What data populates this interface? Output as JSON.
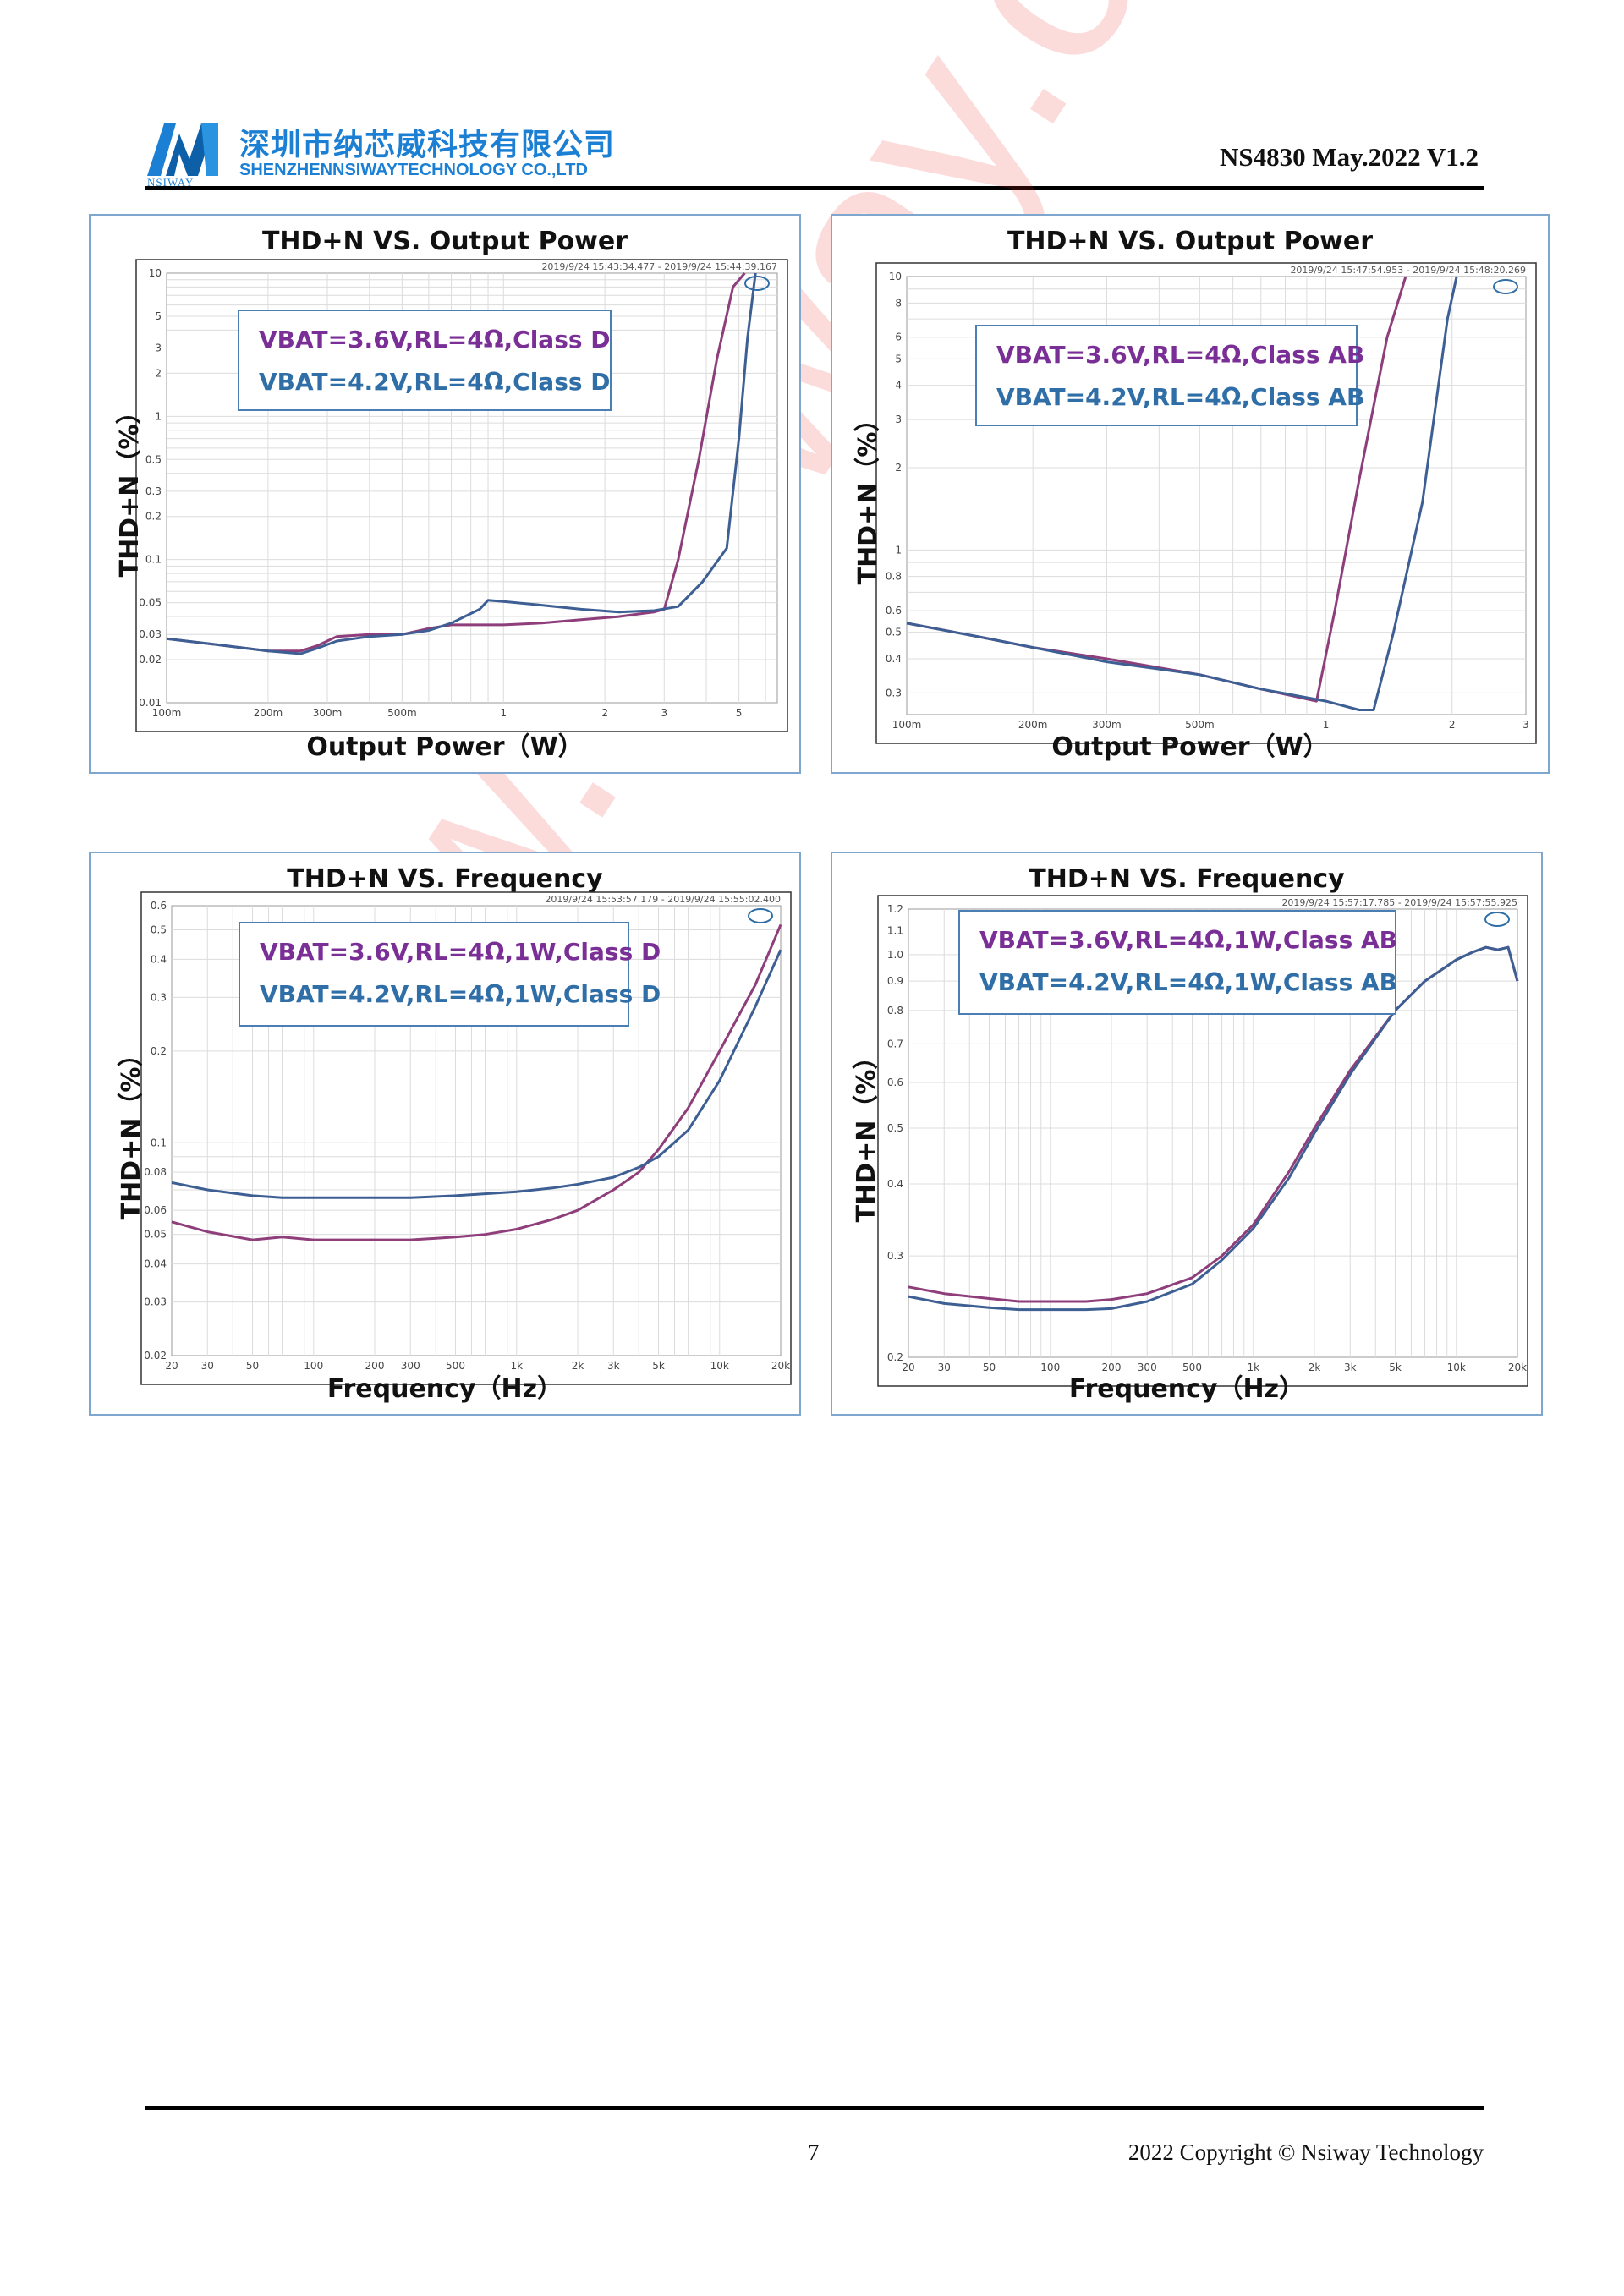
{
  "header": {
    "company_cn": "深圳市纳芯威科技有限公司",
    "company_en": "SHENZHENNSIWAYTECHNOLOGY CO.,LTD",
    "logo_text": "NSIWAY",
    "doc_id": "NS4830 May.2022 V1.2"
  },
  "watermark": "www.nsiway.com",
  "footer": {
    "page": "7",
    "copyright": "2022 Copyright © Nsiway Technology"
  },
  "colors": {
    "series_36": "#8e3e7a",
    "series_42": "#3d5f93",
    "legend_36": "#7a2f96",
    "legend_42": "#2f6ea6",
    "panel_border": "#7ea6cf"
  },
  "chart_data": [
    {
      "type": "line",
      "title": "THD+N VS. Output Power",
      "xlabel": "Output Power（W）",
      "ylabel": "THD+N（%）",
      "xscale": "log",
      "yscale": "log",
      "xlim": [
        0.1,
        6.5
      ],
      "ylim": [
        0.01,
        10
      ],
      "xticks": [
        0.1,
        0.2,
        0.3,
        0.5,
        1,
        2,
        3,
        5
      ],
      "xtick_labels": [
        "100m",
        "200m",
        "300m",
        "500m",
        "1",
        "2",
        "3",
        "5"
      ],
      "yticks": [
        0.01,
        0.02,
        0.03,
        0.05,
        0.1,
        0.2,
        0.3,
        0.5,
        1,
        2,
        3,
        5,
        10
      ],
      "ytick_labels": [
        "0.01",
        "0.02",
        "0.03",
        "0.05",
        "0.1",
        "0.2",
        "0.3",
        "0.5",
        "1",
        "2",
        "3",
        "5",
        "10"
      ],
      "timestamp": "2019/9/24 15:43:34.477 - 2019/9/24 15:44:39.167",
      "legend": [
        "VBAT=3.6V,RL=4Ω,Class D",
        "VBAT=4.2V,RL=4Ω,Class D"
      ],
      "series": [
        {
          "name": "VBAT=3.6V,RL=4Ω,Class D",
          "x": [
            0.1,
            0.15,
            0.2,
            0.25,
            0.28,
            0.32,
            0.4,
            0.5,
            0.6,
            0.7,
            0.85,
            1.0,
            1.3,
            1.7,
            2.2,
            2.8,
            3.0,
            3.3,
            3.8,
            4.3,
            4.8,
            5.2
          ],
          "y": [
            0.028,
            0.025,
            0.023,
            0.023,
            0.025,
            0.029,
            0.03,
            0.03,
            0.033,
            0.035,
            0.035,
            0.035,
            0.036,
            0.038,
            0.04,
            0.043,
            0.045,
            0.1,
            0.5,
            2.5,
            8.0,
            12.0
          ]
        },
        {
          "name": "VBAT=4.2V,RL=4Ω,Class D",
          "x": [
            0.1,
            0.15,
            0.2,
            0.25,
            0.28,
            0.32,
            0.4,
            0.5,
            0.6,
            0.7,
            0.85,
            0.9,
            1.0,
            1.3,
            1.7,
            2.2,
            2.8,
            3.3,
            3.9,
            4.6,
            5.0,
            5.3,
            5.6
          ],
          "y": [
            0.028,
            0.025,
            0.023,
            0.022,
            0.024,
            0.027,
            0.029,
            0.03,
            0.032,
            0.036,
            0.045,
            0.052,
            0.051,
            0.048,
            0.045,
            0.043,
            0.044,
            0.047,
            0.07,
            0.12,
            0.7,
            3.5,
            12.0
          ]
        }
      ]
    },
    {
      "type": "line",
      "title": "THD+N VS. Output Power",
      "xlabel": "Output Power（W）",
      "ylabel": "THD+N（%）",
      "xscale": "log",
      "yscale": "log",
      "xlim": [
        0.1,
        3
      ],
      "ylim": [
        0.25,
        10
      ],
      "xticks": [
        0.1,
        0.2,
        0.3,
        0.5,
        1,
        2,
        3
      ],
      "xtick_labels": [
        "100m",
        "200m",
        "300m",
        "500m",
        "1",
        "2",
        "3"
      ],
      "yticks": [
        0.3,
        0.4,
        0.5,
        0.6,
        0.8,
        1,
        2,
        3,
        4,
        5,
        6,
        8,
        10
      ],
      "ytick_labels": [
        "0.3",
        "0.4",
        "0.5",
        "0.6",
        "0.8",
        "1",
        "2",
        "3",
        "4",
        "5",
        "6",
        "8",
        "10"
      ],
      "timestamp": "2019/9/24 15:47:54.953 - 2019/9/24 15:48:20.269",
      "legend": [
        "VBAT=3.6V,RL=4Ω,Class AB",
        "VBAT=4.2V,RL=4Ω,Class AB"
      ],
      "series": [
        {
          "name": "VBAT=3.6V,RL=4Ω,Class AB",
          "x": [
            0.1,
            0.15,
            0.2,
            0.3,
            0.5,
            0.7,
            0.95,
            1.05,
            1.2,
            1.4,
            1.55
          ],
          "y": [
            0.54,
            0.48,
            0.44,
            0.4,
            0.35,
            0.31,
            0.28,
            0.6,
            1.8,
            6.0,
            11.0
          ]
        },
        {
          "name": "VBAT=4.2V,RL=4Ω,Class AB",
          "x": [
            0.1,
            0.15,
            0.2,
            0.3,
            0.5,
            0.7,
            1.0,
            1.2,
            1.3,
            1.45,
            1.7,
            1.95,
            2.05
          ],
          "y": [
            0.54,
            0.48,
            0.44,
            0.39,
            0.35,
            0.31,
            0.28,
            0.26,
            0.26,
            0.5,
            1.5,
            7.0,
            11.0
          ]
        }
      ]
    },
    {
      "type": "line",
      "title": "THD+N VS. Frequency",
      "xlabel": "Frequency（Hz）",
      "ylabel": "THD+N（%）",
      "xscale": "log",
      "yscale": "log",
      "xlim": [
        20,
        20000
      ],
      "ylim": [
        0.02,
        0.6
      ],
      "xticks": [
        20,
        30,
        50,
        100,
        200,
        300,
        500,
        1000,
        2000,
        3000,
        5000,
        10000,
        20000
      ],
      "xtick_labels": [
        "20",
        "30",
        "50",
        "100",
        "200",
        "300",
        "500",
        "1k",
        "2k",
        "3k",
        "5k",
        "10k",
        "20k"
      ],
      "yticks": [
        0.02,
        0.03,
        0.04,
        0.05,
        0.06,
        0.08,
        0.1,
        0.2,
        0.3,
        0.4,
        0.5,
        0.6
      ],
      "ytick_labels": [
        "0.02",
        "0.03",
        "0.04",
        "0.05",
        "0.06",
        "0.08",
        "0.1",
        "0.2",
        "0.3",
        "0.4",
        "0.5",
        "0.6"
      ],
      "timestamp": "2019/9/24 15:53:57.179 - 2019/9/24 15:55:02.400",
      "legend": [
        "VBAT=3.6V,RL=4Ω,1W,Class D",
        "VBAT=4.2V,RL=4Ω,1W,Class D"
      ],
      "series": [
        {
          "name": "VBAT=3.6V,RL=4Ω,1W,Class D",
          "x": [
            20,
            30,
            50,
            70,
            100,
            150,
            200,
            300,
            500,
            700,
            1000,
            1500,
            2000,
            3000,
            4000,
            5000,
            7000,
            10000,
            15000,
            20000
          ],
          "y": [
            0.055,
            0.051,
            0.048,
            0.049,
            0.048,
            0.048,
            0.048,
            0.048,
            0.049,
            0.05,
            0.052,
            0.056,
            0.06,
            0.07,
            0.08,
            0.095,
            0.13,
            0.2,
            0.33,
            0.52
          ]
        },
        {
          "name": "VBAT=4.2V,RL=4Ω,1W,Class D",
          "x": [
            20,
            30,
            50,
            70,
            100,
            150,
            200,
            300,
            500,
            700,
            1000,
            1500,
            2000,
            3000,
            4000,
            5000,
            7000,
            10000,
            15000,
            20000
          ],
          "y": [
            0.074,
            0.07,
            0.067,
            0.066,
            0.066,
            0.066,
            0.066,
            0.066,
            0.067,
            0.068,
            0.069,
            0.071,
            0.073,
            0.077,
            0.083,
            0.09,
            0.11,
            0.16,
            0.28,
            0.43
          ]
        }
      ]
    },
    {
      "type": "line",
      "title": "THD+N VS. Frequency",
      "xlabel": "Frequency（Hz）",
      "ylabel": "THD+N（%）",
      "xscale": "log",
      "yscale": "log",
      "xlim": [
        20,
        20000
      ],
      "ylim": [
        0.2,
        1.2
      ],
      "xticks": [
        20,
        30,
        50,
        100,
        200,
        300,
        500,
        1000,
        2000,
        3000,
        5000,
        10000,
        20000
      ],
      "xtick_labels": [
        "20",
        "30",
        "50",
        "100",
        "200",
        "300",
        "500",
        "1k",
        "2k",
        "3k",
        "5k",
        "10k",
        "20k"
      ],
      "yticks": [
        0.2,
        0.3,
        0.4,
        0.5,
        0.6,
        0.7,
        0.8,
        0.9,
        1.0,
        1.1,
        1.2
      ],
      "ytick_labels": [
        "0.2",
        "0.3",
        "0.4",
        "0.5",
        "0.6",
        "0.7",
        "0.8",
        "0.9",
        "1.0",
        "1.1",
        "1.2"
      ],
      "timestamp": "2019/9/24 15:57:17.785 - 2019/9/24 15:57:55.925",
      "legend": [
        "VBAT=3.6V,RL=4Ω,1W,Class AB",
        "VBAT=4.2V,RL=4Ω,1W,Class AB"
      ],
      "series": [
        {
          "name": "VBAT=3.6V,RL=4Ω,1W,Class AB",
          "x": [
            20,
            30,
            50,
            70,
            100,
            150,
            200,
            300,
            500,
            700,
            1000,
            1500,
            2000,
            3000,
            5000,
            7000,
            10000,
            12000,
            14000,
            16000,
            18000,
            20000
          ],
          "y": [
            0.265,
            0.258,
            0.253,
            0.25,
            0.25,
            0.25,
            0.252,
            0.258,
            0.275,
            0.3,
            0.34,
            0.42,
            0.5,
            0.63,
            0.8,
            0.9,
            0.98,
            1.01,
            1.03,
            1.02,
            1.03,
            0.9
          ]
        },
        {
          "name": "VBAT=4.2V,RL=4Ω,1W,Class AB",
          "x": [
            20,
            30,
            50,
            70,
            100,
            150,
            200,
            300,
            500,
            700,
            1000,
            1500,
            2000,
            3000,
            5000,
            7000,
            10000,
            12000,
            14000,
            16000,
            18000,
            20000
          ],
          "y": [
            0.255,
            0.248,
            0.244,
            0.242,
            0.242,
            0.242,
            0.243,
            0.25,
            0.268,
            0.295,
            0.335,
            0.41,
            0.49,
            0.62,
            0.8,
            0.9,
            0.98,
            1.01,
            1.03,
            1.02,
            1.03,
            0.9
          ]
        }
      ]
    }
  ]
}
